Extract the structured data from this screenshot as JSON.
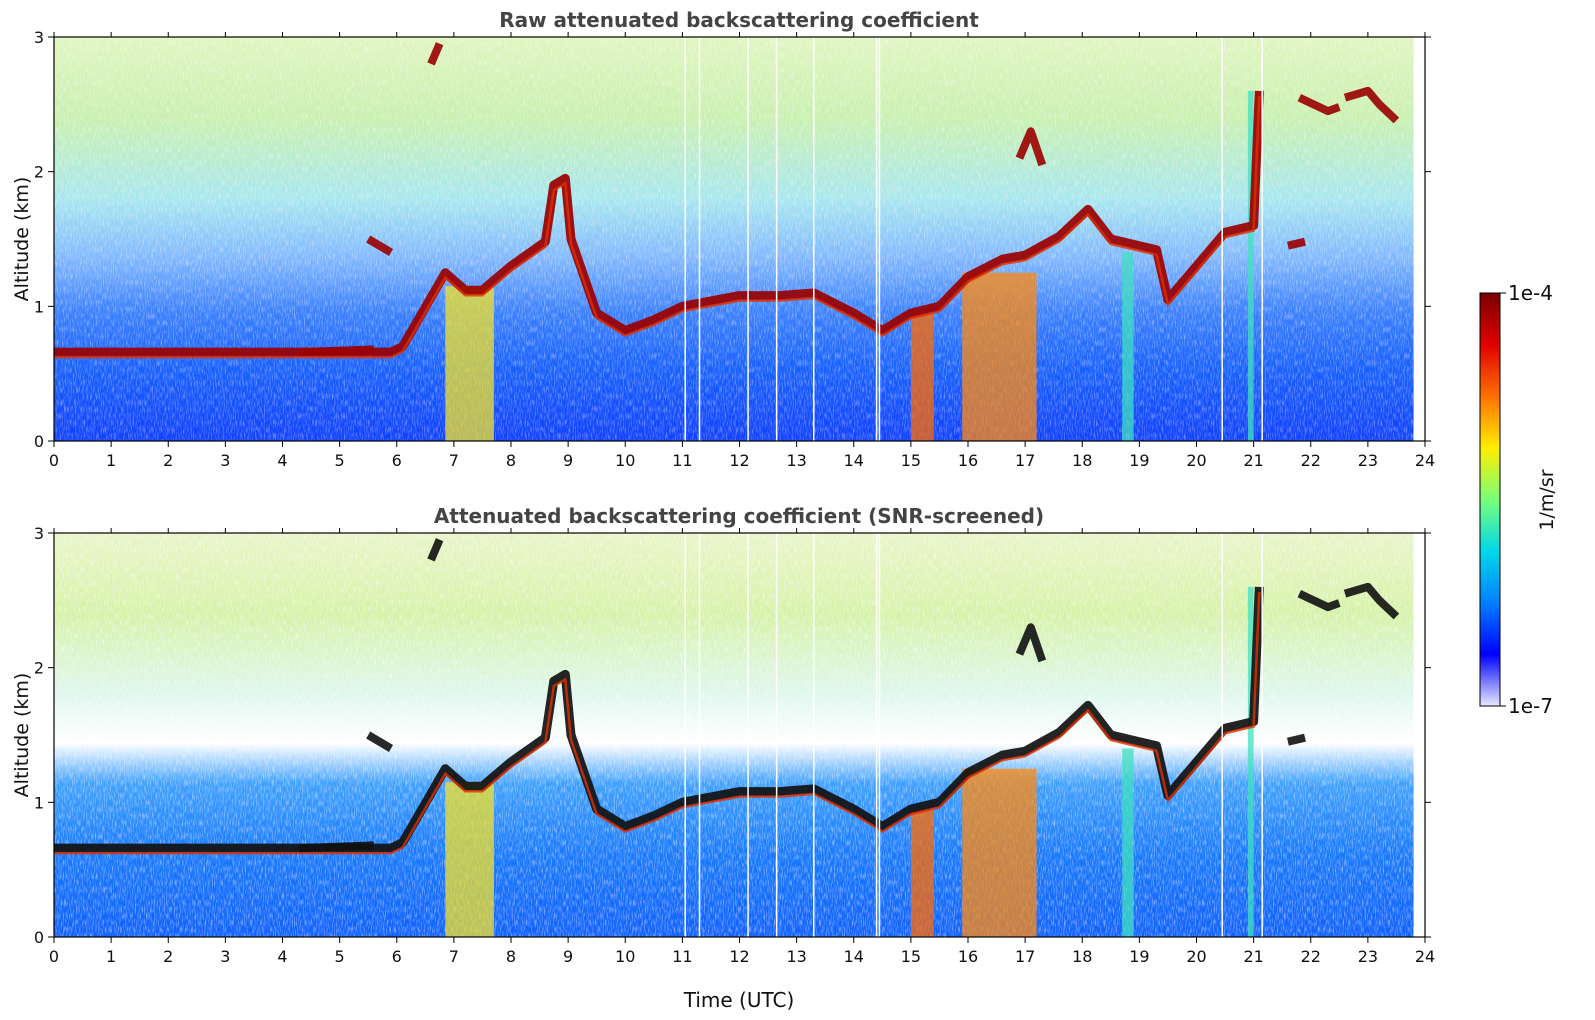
{
  "chart_data": [
    {
      "type": "heatmap",
      "title": "Raw attenuated backscattering coefficient",
      "xlabel": "",
      "ylabel": "Altitude (km)",
      "xlim": [
        0,
        24
      ],
      "ylim": [
        0,
        3
      ],
      "xticks": [
        "0",
        "1",
        "2",
        "3",
        "4",
        "5",
        "6",
        "7",
        "8",
        "9",
        "10",
        "11",
        "12",
        "13",
        "14",
        "15",
        "16",
        "17",
        "18",
        "19",
        "20",
        "21",
        "22",
        "23",
        "24"
      ],
      "yticks": [
        "0",
        "1",
        "2",
        "3"
      ],
      "screened": false
    },
    {
      "type": "heatmap",
      "title": "Attenuated backscattering coefficient (SNR-screened)",
      "xlabel": "Time (UTC)",
      "ylabel": "Altitude (km)",
      "xlim": [
        0,
        24
      ],
      "ylim": [
        0,
        3
      ],
      "xticks": [
        "0",
        "1",
        "2",
        "3",
        "4",
        "5",
        "6",
        "7",
        "8",
        "9",
        "10",
        "11",
        "12",
        "13",
        "14",
        "15",
        "16",
        "17",
        "18",
        "19",
        "20",
        "21",
        "22",
        "23",
        "24"
      ],
      "yticks": [
        "0",
        "1",
        "2",
        "3"
      ],
      "screened": true
    }
  ],
  "colorbar": {
    "label": "1/m/sr",
    "max_label": "1e-4",
    "min_label": "1e-7",
    "scale": "log",
    "range": [
      1e-07,
      0.0001
    ],
    "colormap": [
      "#e8e8ff",
      "#0000ff",
      "#0080ff",
      "#00d8e8",
      "#7aff7a",
      "#ffee00",
      "#ff7000",
      "#e00000",
      "#7a0000"
    ]
  },
  "layers": {
    "cloud_base": [
      [
        0,
        0.66
      ],
      [
        4.15,
        0.66
      ],
      [
        5.9,
        0.66
      ],
      [
        6.1,
        0.7
      ],
      [
        6.85,
        1.25
      ],
      [
        7.2,
        1.12
      ],
      [
        7.5,
        1.12
      ],
      [
        8.0,
        1.3
      ],
      [
        8.6,
        1.48
      ],
      [
        8.75,
        1.9
      ],
      [
        8.95,
        1.95
      ],
      [
        9.05,
        1.5
      ],
      [
        9.5,
        0.95
      ],
      [
        10.0,
        0.82
      ],
      [
        10.5,
        0.9
      ],
      [
        11.0,
        1.0
      ],
      [
        12.0,
        1.08
      ],
      [
        12.7,
        1.08
      ],
      [
        13.3,
        1.1
      ],
      [
        14.0,
        0.95
      ],
      [
        14.5,
        0.82
      ],
      [
        15.0,
        0.95
      ],
      [
        15.5,
        1.0
      ],
      [
        16.0,
        1.22
      ],
      [
        16.6,
        1.35
      ],
      [
        17.0,
        1.38
      ],
      [
        17.6,
        1.52
      ],
      [
        18.1,
        1.72
      ],
      [
        18.5,
        1.5
      ],
      [
        19.3,
        1.42
      ],
      [
        19.5,
        1.05
      ],
      [
        19.9,
        1.25
      ],
      [
        20.5,
        1.55
      ],
      [
        21.0,
        1.6
      ],
      [
        21.1,
        2.6
      ]
    ],
    "upper_segments": [
      [
        [
          21.8,
          2.55
        ],
        [
          22.3,
          2.45
        ],
        [
          22.5,
          2.48
        ]
      ],
      [
        [
          22.6,
          2.55
        ],
        [
          23.0,
          2.6
        ],
        [
          23.2,
          2.5
        ],
        [
          23.5,
          2.38
        ]
      ],
      [
        [
          21.6,
          1.45
        ],
        [
          21.9,
          1.48
        ]
      ],
      [
        [
          6.6,
          2.8
        ],
        [
          6.75,
          2.95
        ]
      ],
      [
        [
          16.9,
          2.1
        ],
        [
          17.1,
          2.3
        ],
        [
          17.3,
          2.05
        ]
      ],
      [
        [
          4.3,
          0.66
        ],
        [
          5.6,
          0.68
        ]
      ],
      [
        [
          5.5,
          1.5
        ],
        [
          5.9,
          1.4
        ]
      ]
    ]
  }
}
